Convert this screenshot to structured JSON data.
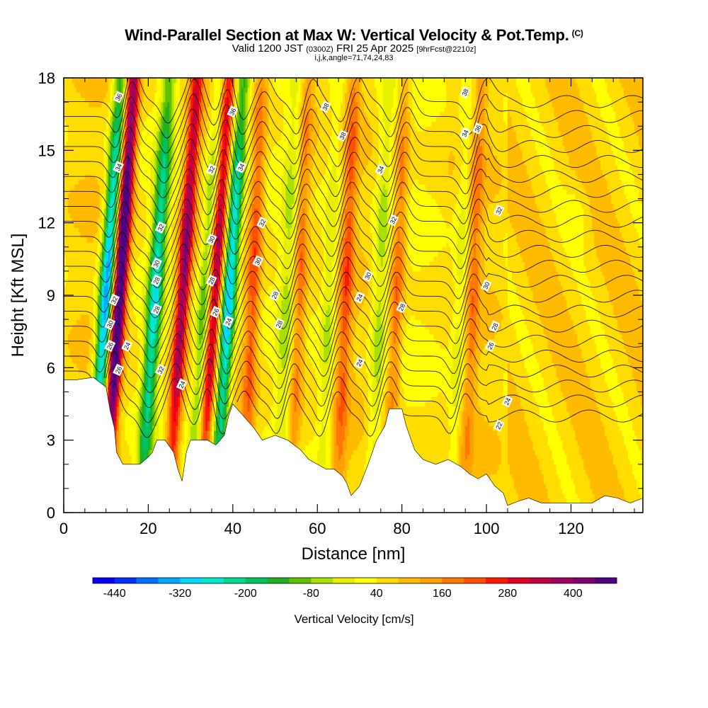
{
  "header": {
    "title": "Wind-Parallel Section at Max W: Vertical Velocity & Pot.Temp.",
    "copyright": "(C)",
    "valid_prefix": "Valid 1200 JST",
    "valid_utc": "(0300Z)",
    "valid_date": "FRI 25 Apr 2025",
    "forecast": "[9hrFcst@2210z]",
    "indices": "i,j,k,angle=71,74,24,83"
  },
  "chart_data": {
    "type": "heatmap",
    "title": "Wind-Parallel Section at Max W: Vertical Velocity & Pot.Temp.",
    "xlabel": "Distance [nm]",
    "ylabel": "Height [Kft MSL]",
    "xlim": [
      0,
      137
    ],
    "ylim": [
      0,
      18
    ],
    "x_ticks": [
      "0",
      "20",
      "40",
      "60",
      "80",
      "100",
      "120"
    ],
    "y_ticks": [
      "0",
      "3",
      "6",
      "9",
      "12",
      "15",
      "18"
    ],
    "colorbar": {
      "title": "Vertical Velocity [cm/s]",
      "tick_labels": [
        "-440",
        "-320",
        "-200",
        "-80",
        "40",
        "160",
        "280",
        "400"
      ],
      "min": -480,
      "max": 480,
      "colors": [
        "#0000ff",
        "#0030ff",
        "#0070ff",
        "#00a8ff",
        "#00d8ff",
        "#00e8d0",
        "#00d890",
        "#00c060",
        "#20b020",
        "#60c000",
        "#a8e000",
        "#e8f000",
        "#ffff00",
        "#ffdd00",
        "#ffbb00",
        "#ffa000",
        "#ff7800",
        "#ff5000",
        "#ff1800",
        "#e00020",
        "#c00040",
        "#a00060",
        "#800070",
        "#500080"
      ]
    },
    "theta_contour_labels": [
      "22",
      "24",
      "26",
      "28",
      "30",
      "32",
      "34",
      "36",
      "38"
    ],
    "updraft_bands_x": [
      13.5,
      28.5,
      36,
      45,
      56,
      67,
      79,
      97
    ],
    "downdraft_bands_x": [
      10.5,
      22,
      34,
      39.5,
      53,
      63,
      75,
      94
    ],
    "terrain_profile": [
      [
        0,
        5.5
      ],
      [
        3,
        5.5
      ],
      [
        7,
        5.6
      ],
      [
        10,
        5.2
      ],
      [
        11,
        4.2
      ],
      [
        12,
        3.5
      ],
      [
        12.5,
        2.5
      ],
      [
        14,
        2.0
      ],
      [
        18,
        2.0
      ],
      [
        20,
        2.3
      ],
      [
        21,
        2.5
      ],
      [
        22,
        3.0
      ],
      [
        24,
        3.0
      ],
      [
        26,
        2.5
      ],
      [
        27,
        1.8
      ],
      [
        28,
        1.3
      ],
      [
        29,
        2.5
      ],
      [
        30,
        3.0
      ],
      [
        34,
        3.0
      ],
      [
        36,
        2.8
      ],
      [
        38,
        3.2
      ],
      [
        39,
        4.0
      ],
      [
        40,
        4.5
      ],
      [
        42,
        4.1
      ],
      [
        45,
        3.5
      ],
      [
        47,
        3.0
      ],
      [
        50,
        3.2
      ],
      [
        53,
        3.0
      ],
      [
        56,
        2.6
      ],
      [
        58,
        2.2
      ],
      [
        60,
        2.0
      ],
      [
        62,
        1.8
      ],
      [
        64,
        1.8
      ],
      [
        66,
        1.5
      ],
      [
        67,
        1.2
      ],
      [
        68,
        0.7
      ],
      [
        70,
        1.1
      ],
      [
        72,
        2.0
      ],
      [
        74,
        3.0
      ],
      [
        76,
        3.6
      ],
      [
        77,
        4.3
      ],
      [
        80,
        4.3
      ],
      [
        81,
        3.6
      ],
      [
        83,
        2.6
      ],
      [
        85,
        2.2
      ],
      [
        88,
        2.0
      ],
      [
        91,
        2.2
      ],
      [
        94,
        1.9
      ],
      [
        96,
        1.6
      ],
      [
        98,
        1.4
      ],
      [
        100,
        1.6
      ],
      [
        102,
        1.1
      ],
      [
        104,
        0.8
      ],
      [
        105,
        0.3
      ],
      [
        108,
        0.5
      ],
      [
        110,
        0.6
      ],
      [
        113,
        0.4
      ],
      [
        120,
        0.4
      ],
      [
        125,
        0.4
      ],
      [
        128,
        0.7
      ],
      [
        131,
        0.6
      ],
      [
        134,
        0.4
      ],
      [
        137,
        0.6
      ]
    ]
  }
}
